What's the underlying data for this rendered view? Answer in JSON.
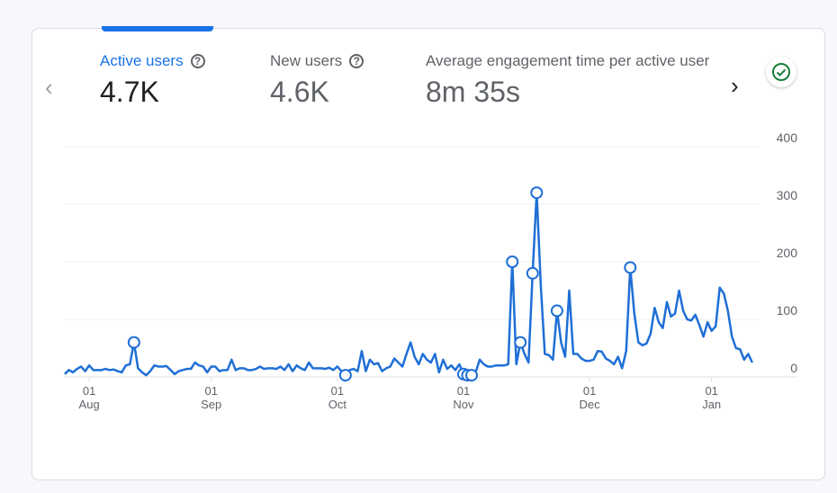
{
  "metrics": [
    {
      "label": "Active users",
      "value": "4.7K",
      "active": true
    },
    {
      "label": "New users",
      "value": "4.6K",
      "active": false
    },
    {
      "label": "Average engagement time per active user",
      "value": "8m 35s",
      "active": false
    }
  ],
  "help_icon": "?",
  "colors": {
    "accent": "#1a73e8",
    "line": "#1f6fd6",
    "check": "#188038"
  },
  "chart_data": {
    "type": "line",
    "series": [
      {
        "name": "Active users",
        "start_date": "Jul 26",
        "values": [
          5,
          12,
          8,
          14,
          18,
          10,
          20,
          12,
          12,
          12,
          14,
          12,
          13,
          10,
          8,
          20,
          22,
          60,
          15,
          8,
          3,
          10,
          20,
          18,
          18,
          19,
          12,
          5,
          10,
          12,
          14,
          14,
          25,
          20,
          18,
          8,
          18,
          18,
          10,
          12,
          12,
          30,
          12,
          15,
          15,
          12,
          12,
          14,
          18,
          14,
          15,
          15,
          14,
          18,
          12,
          22,
          10,
          20,
          15,
          12,
          25,
          15,
          15,
          15,
          14,
          16,
          12,
          18,
          10,
          3,
          12,
          14,
          10,
          45,
          10,
          30,
          22,
          24,
          10,
          15,
          18,
          32,
          25,
          18,
          40,
          60,
          35,
          22,
          40,
          30,
          25,
          40,
          8,
          30,
          14,
          20,
          12,
          22,
          5,
          3,
          3,
          8,
          30,
          22,
          18,
          18,
          20,
          20,
          20,
          22,
          200,
          22,
          60,
          40,
          25,
          180,
          320,
          160,
          40,
          38,
          30,
          115,
          60,
          35,
          150,
          40,
          40,
          32,
          28,
          28,
          30,
          45,
          44,
          32,
          28,
          22,
          35,
          15,
          45,
          190,
          110,
          60,
          55,
          58,
          75,
          120,
          95,
          85,
          130,
          105,
          110,
          150,
          115,
          100,
          98,
          108,
          90,
          70,
          95,
          80,
          88,
          155,
          145,
          115,
          70,
          50,
          48,
          30,
          40,
          25
        ]
      }
    ],
    "anomaly_indices": [
      17,
      69,
      98,
      99,
      100,
      110,
      112,
      115,
      116,
      121,
      139
    ],
    "x_ticks": [
      {
        "day": 6,
        "top": "01",
        "bottom": "Aug"
      },
      {
        "day": 36,
        "top": "01",
        "bottom": "Sep"
      },
      {
        "day": 67,
        "top": "01",
        "bottom": "Oct"
      },
      {
        "day": 98,
        "top": "01",
        "bottom": "Nov"
      },
      {
        "day": 129,
        "top": "01",
        "bottom": "Dec"
      },
      {
        "day": 159,
        "top": "01",
        "bottom": "Jan"
      }
    ],
    "y_ticks": [
      "0",
      "100",
      "200",
      "300",
      "400"
    ],
    "ylim": [
      0,
      400
    ],
    "grid": true
  }
}
